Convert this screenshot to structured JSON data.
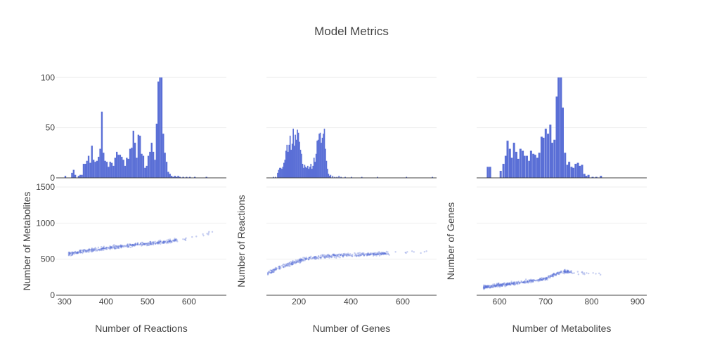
{
  "chart_data": {
    "type": "scatter",
    "title": "Model Metrics",
    "colors": {
      "marker": "#5a6fd6",
      "grid": "#eeeeee",
      "axis": "#444444",
      "text": "#444444"
    },
    "histogram_yaxis": {
      "range": [
        0,
        110
      ],
      "ticks": [
        0,
        50,
        100
      ]
    },
    "scatter_yaxis": {
      "range": [
        0,
        1500
      ],
      "ticks": [
        0,
        500,
        1000,
        1500
      ]
    },
    "panels": [
      {
        "xlabel": "Number of Reactions",
        "ylabel": "Number of Metabolites",
        "xrange": [
          280,
          690
        ],
        "xticks": [
          300,
          400,
          500,
          600
        ],
        "histogram": {
          "bin_width": 4,
          "bins": [
            [
              300,
              2
            ],
            [
              316,
              5
            ],
            [
              320,
              8
            ],
            [
              324,
              3
            ],
            [
              332,
              2
            ],
            [
              336,
              3
            ],
            [
              340,
              3
            ],
            [
              344,
              14
            ],
            [
              348,
              14
            ],
            [
              352,
              17
            ],
            [
              356,
              22
            ],
            [
              360,
              15
            ],
            [
              364,
              32
            ],
            [
              368,
              18
            ],
            [
              372,
              16
            ],
            [
              376,
              17
            ],
            [
              380,
              21
            ],
            [
              384,
              29
            ],
            [
              388,
              66
            ],
            [
              392,
              25
            ],
            [
              396,
              17
            ],
            [
              400,
              16
            ],
            [
              404,
              11
            ],
            [
              408,
              16
            ],
            [
              412,
              15
            ],
            [
              416,
              12
            ],
            [
              420,
              20
            ],
            [
              424,
              26
            ],
            [
              428,
              23
            ],
            [
              432,
              23
            ],
            [
              436,
              21
            ],
            [
              440,
              18
            ],
            [
              444,
              12
            ],
            [
              448,
              20
            ],
            [
              452,
              19
            ],
            [
              456,
              29
            ],
            [
              460,
              30
            ],
            [
              464,
              47
            ],
            [
              468,
              35
            ],
            [
              472,
              20
            ],
            [
              476,
              43
            ],
            [
              480,
              42
            ],
            [
              484,
              24
            ],
            [
              488,
              22
            ],
            [
              492,
              10
            ],
            [
              496,
              12
            ],
            [
              500,
              22
            ],
            [
              504,
              26
            ],
            [
              508,
              35
            ],
            [
              512,
              26
            ],
            [
              516,
              18
            ],
            [
              520,
              54
            ],
            [
              524,
              96
            ],
            [
              528,
              100
            ],
            [
              532,
              100
            ],
            [
              536,
              44
            ],
            [
              540,
              25
            ],
            [
              544,
              16
            ],
            [
              548,
              6
            ],
            [
              552,
              4
            ],
            [
              556,
              2
            ],
            [
              560,
              1
            ],
            [
              564,
              2
            ],
            [
              568,
              1
            ],
            [
              572,
              2
            ],
            [
              576,
              1
            ],
            [
              584,
              1
            ],
            [
              592,
              1
            ],
            [
              600,
              1
            ],
            [
              612,
              1
            ],
            [
              640,
              1
            ]
          ]
        },
        "scatter_trend": [
          [
            310,
            575
          ],
          [
            360,
            620
          ],
          [
            420,
            665
          ],
          [
            480,
            705
          ],
          [
            540,
            740
          ],
          [
            600,
            790
          ],
          [
            660,
            880
          ]
        ]
      },
      {
        "xlabel": "Number of Genes",
        "ylabel": "Number of Reactions",
        "xrange": [
          75,
          730
        ],
        "xticks": [
          200,
          400,
          600
        ],
        "histogram": {
          "bin_width": 4.5,
          "bins": [
            [
              100,
              1
            ],
            [
              108,
              1
            ],
            [
              116,
              5
            ],
            [
              120,
              8
            ],
            [
              124,
              10
            ],
            [
              128,
              10
            ],
            [
              132,
              9
            ],
            [
              136,
              11
            ],
            [
              140,
              15
            ],
            [
              144,
              18
            ],
            [
              148,
              27
            ],
            [
              152,
              33
            ],
            [
              156,
              26
            ],
            [
              160,
              33
            ],
            [
              164,
              42
            ],
            [
              168,
              28
            ],
            [
              172,
              34
            ],
            [
              176,
              49
            ],
            [
              180,
              32
            ],
            [
              184,
              43
            ],
            [
              188,
              38
            ],
            [
              192,
              48
            ],
            [
              196,
              45
            ],
            [
              200,
              36
            ],
            [
              204,
              28
            ],
            [
              208,
              24
            ],
            [
              212,
              14
            ],
            [
              216,
              10
            ],
            [
              220,
              13
            ],
            [
              224,
              11
            ],
            [
              228,
              10
            ],
            [
              232,
              12
            ],
            [
              236,
              9
            ],
            [
              240,
              11
            ],
            [
              244,
              14
            ],
            [
              248,
              9
            ],
            [
              252,
              12
            ],
            [
              256,
              20
            ],
            [
              260,
              16
            ],
            [
              264,
              24
            ],
            [
              268,
              37
            ],
            [
              272,
              38
            ],
            [
              276,
              44
            ],
            [
              280,
              45
            ],
            [
              284,
              35
            ],
            [
              288,
              40
            ],
            [
              292,
              44
            ],
            [
              296,
              49
            ],
            [
              300,
              29
            ],
            [
              304,
              17
            ],
            [
              308,
              9
            ],
            [
              312,
              4
            ],
            [
              316,
              2
            ],
            [
              320,
              3
            ],
            [
              328,
              2
            ],
            [
              336,
              1
            ],
            [
              344,
              1
            ],
            [
              352,
              2
            ],
            [
              360,
              1
            ],
            [
              376,
              1
            ],
            [
              400,
              1
            ],
            [
              440,
              1
            ],
            [
              500,
              1
            ],
            [
              612,
              1
            ],
            [
              712,
              1
            ]
          ]
        },
        "scatter_trend": [
          [
            80,
            300
          ],
          [
            110,
            360
          ],
          [
            140,
            400
          ],
          [
            180,
            450
          ],
          [
            220,
            500
          ],
          [
            280,
            530
          ],
          [
            330,
            545
          ],
          [
            380,
            555
          ],
          [
            450,
            565
          ],
          [
            600,
            590
          ],
          [
            700,
            600
          ]
        ]
      },
      {
        "xlabel": "Number of Metabolites",
        "ylabel": "Number of Genes",
        "xrange": [
          550,
          920
        ],
        "xticks": [
          600,
          700,
          800,
          900
        ],
        "histogram": {
          "bin_width": 4.6,
          "bins": [
            [
              572,
              11
            ],
            [
              577,
              11
            ],
            [
              600,
              7
            ],
            [
              606,
              14
            ],
            [
              611,
              22
            ],
            [
              615,
              37
            ],
            [
              620,
              29
            ],
            [
              624,
              20
            ],
            [
              629,
              35
            ],
            [
              634,
              26
            ],
            [
              638,
              19
            ],
            [
              643,
              29
            ],
            [
              648,
              27
            ],
            [
              652,
              22
            ],
            [
              657,
              22
            ],
            [
              662,
              17
            ],
            [
              666,
              27
            ],
            [
              671,
              24
            ],
            [
              675,
              23
            ],
            [
              680,
              20
            ],
            [
              684,
              25
            ],
            [
              689,
              41
            ],
            [
              693,
              40
            ],
            [
              698,
              49
            ],
            [
              703,
              44
            ],
            [
              708,
              53
            ],
            [
              712,
              35
            ],
            [
              717,
              38
            ],
            [
              722,
              81
            ],
            [
              726,
              100
            ],
            [
              731,
              100
            ],
            [
              735,
              70
            ],
            [
              740,
              25
            ],
            [
              745,
              13
            ],
            [
              749,
              16
            ],
            [
              754,
              11
            ],
            [
              758,
              10
            ],
            [
              763,
              14
            ],
            [
              768,
              15
            ],
            [
              772,
              12
            ],
            [
              777,
              13
            ],
            [
              782,
              4
            ],
            [
              786,
              2
            ],
            [
              791,
              3
            ],
            [
              800,
              1
            ],
            [
              808,
              1
            ],
            [
              818,
              2
            ]
          ]
        },
        "scatter_trend": [
          [
            565,
            110
          ],
          [
            600,
            140
          ],
          [
            650,
            180
          ],
          [
            700,
            230
          ],
          [
            730,
            320
          ],
          [
            750,
            330
          ],
          [
            780,
            310
          ],
          [
            820,
            290
          ]
        ]
      }
    ]
  }
}
